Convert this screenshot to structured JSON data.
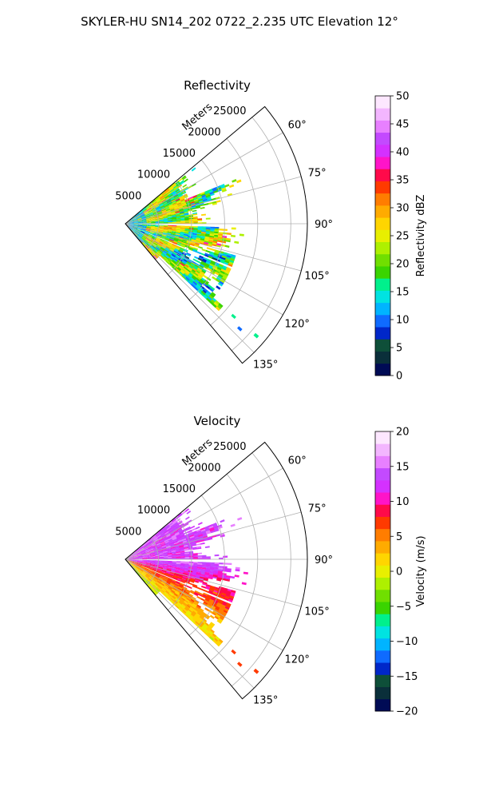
{
  "figure_title": "SKYLER-HU  SN14_202  0722_2.235 UTC Elevation 12°",
  "chart_data": [
    {
      "type": "heatmap",
      "projection": "polar-sector",
      "title": "Reflectivity",
      "radial_axis_label": "Meters",
      "radial_ticks": [
        "5000",
        "10000",
        "15000",
        "20000",
        "25000"
      ],
      "radial_tick_values": [
        5000,
        10000,
        15000,
        20000,
        25000
      ],
      "radial_max": 27500,
      "azimuth_range_deg": [
        50,
        140
      ],
      "azimuth_ticks": [
        "60°",
        "75°",
        "90°",
        "105°",
        "120°",
        "135°"
      ],
      "azimuth_tick_values": [
        60,
        75,
        90,
        105,
        120,
        135
      ],
      "grid": true,
      "colorbar": {
        "label": "Reflectivity dBZ",
        "range": [
          0,
          50
        ],
        "ticks": [
          "0",
          "5",
          "10",
          "15",
          "20",
          "25",
          "30",
          "35",
          "40",
          "45",
          "50"
        ],
        "colors": [
          "#000b55",
          "#0a2f3a",
          "#0e4f39",
          "#0027c9",
          "#0f6bff",
          "#00b4ff",
          "#00e3e1",
          "#00f08c",
          "#3ad400",
          "#70df00",
          "#aef000",
          "#e8ef00",
          "#ffd500",
          "#ffab00",
          "#ff7d00",
          "#ff3a00",
          "#ff0a4a",
          "#ff14c8",
          "#d431ff",
          "#c34aff",
          "#e880ff",
          "#f3b6ff",
          "#fde7ff"
        ]
      },
      "field": {
        "dominant_range": [
          15,
          30
        ],
        "peak_range": [
          30,
          36
        ]
      }
    },
    {
      "type": "heatmap",
      "projection": "polar-sector",
      "title": "Velocity",
      "radial_axis_label": "Meters",
      "radial_ticks": [
        "5000",
        "10000",
        "15000",
        "20000",
        "25000"
      ],
      "radial_tick_values": [
        5000,
        10000,
        15000,
        20000,
        25000
      ],
      "radial_max": 27500,
      "azimuth_range_deg": [
        50,
        140
      ],
      "azimuth_ticks": [
        "60°",
        "75°",
        "90°",
        "105°",
        "120°",
        "135°"
      ],
      "azimuth_tick_values": [
        60,
        75,
        90,
        105,
        120,
        135
      ],
      "grid": true,
      "colorbar": {
        "label": "Velocity (m/s)",
        "range": [
          -20,
          20
        ],
        "ticks": [
          "−20",
          "−15",
          "−10",
          "−5",
          "0",
          "5",
          "10",
          "15",
          "20"
        ],
        "colors": [
          "#000b55",
          "#0a2f3a",
          "#0e4f39",
          "#0027c9",
          "#0f6bff",
          "#00b4ff",
          "#00e3e1",
          "#00f08c",
          "#3ad400",
          "#70df00",
          "#aef000",
          "#e8ef00",
          "#ffd500",
          "#ffab00",
          "#ff7d00",
          "#ff3a00",
          "#ff0a4a",
          "#ff14c8",
          "#d431ff",
          "#c34aff",
          "#e880ff",
          "#f3b6ff",
          "#fde7ff"
        ]
      },
      "field": {
        "north_sector": [
          8,
          16
        ],
        "south_sector": [
          -6,
          6
        ]
      }
    }
  ]
}
